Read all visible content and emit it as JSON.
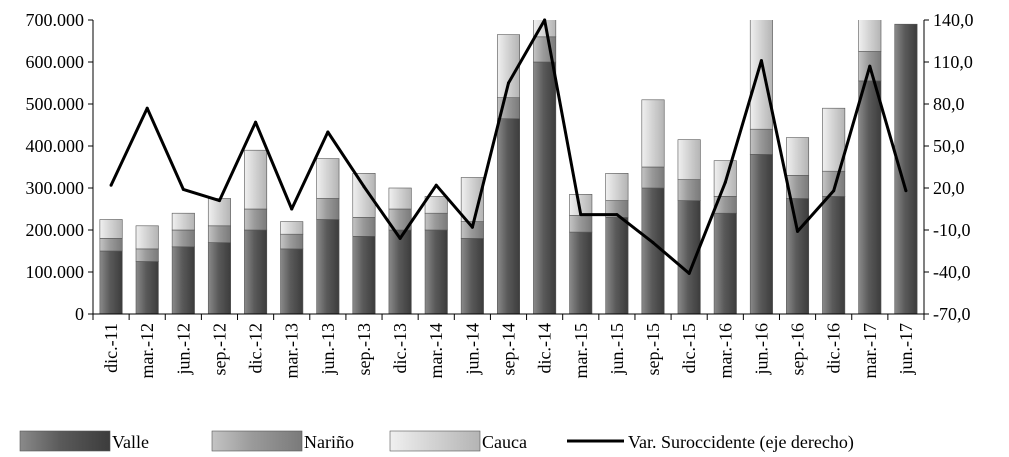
{
  "chart_data": {
    "type": "bar",
    "stacked": true,
    "categories": [
      "dic.-11",
      "mar.-12",
      "jun.-12",
      "sep.-12",
      "dic.-12",
      "mar.-13",
      "jun.-13",
      "sep.-13",
      "dic.-13",
      "mar.-14",
      "jun.-14",
      "sep.-14",
      "dic.-14",
      "mar.-15",
      "jun.-15",
      "sep.-15",
      "dic.-15",
      "mar.-16",
      "jun.-16",
      "sep.-16",
      "dic.-16",
      "mar.-17",
      "jun.-17"
    ],
    "series": [
      {
        "name": "Valle",
        "color": "#6e6e6e",
        "values": [
          150000,
          125000,
          160000,
          170000,
          200000,
          155000,
          225000,
          185000,
          200000,
          200000,
          180000,
          465000,
          600000,
          195000,
          230000,
          300000,
          270000,
          240000,
          380000,
          275000,
          280000,
          555000,
          690000
        ]
      },
      {
        "name": "Nariño",
        "color": "#9a9a9a",
        "values": [
          30000,
          30000,
          40000,
          40000,
          50000,
          35000,
          50000,
          45000,
          50000,
          40000,
          40000,
          50000,
          60000,
          40000,
          40000,
          50000,
          50000,
          40000,
          60000,
          55000,
          60000,
          70000,
          0
        ]
      },
      {
        "name": "Cauca",
        "color": "#cfcfcf",
        "values": [
          45000,
          55000,
          40000,
          65000,
          140000,
          30000,
          95000,
          105000,
          50000,
          40000,
          105000,
          150000,
          50000,
          50000,
          65000,
          160000,
          95000,
          85000,
          270000,
          90000,
          150000,
          85000,
          0
        ]
      }
    ],
    "line_series": {
      "name": "Var. Suroccidente (eje derecho)",
      "axis": "right",
      "color": "#000000",
      "values": [
        22,
        77,
        19,
        11,
        67,
        5,
        60,
        21,
        -16,
        22,
        -8,
        95,
        140,
        1,
        1,
        -19,
        -41,
        24,
        111,
        -11,
        18,
        107,
        18
      ]
    },
    "y_left": {
      "ylim": [
        0,
        700000
      ],
      "ticks": [
        0,
        100000,
        200000,
        300000,
        400000,
        500000,
        600000,
        700000
      ],
      "tick_labels": [
        "0",
        "100.000",
        "200.000",
        "300.000",
        "400.000",
        "500.000",
        "600.000",
        "700.000"
      ]
    },
    "y_right": {
      "ylim": [
        -70,
        140
      ],
      "ticks": [
        -70,
        -40,
        -10,
        20,
        50,
        80,
        110,
        140
      ],
      "tick_labels": [
        "-70,0",
        "-40,0",
        "-10,0",
        "20,0",
        "50,0",
        "80,0",
        "110,0",
        "140,0"
      ]
    },
    "title": "",
    "xlabel": "",
    "ylabel": "",
    "legend": {
      "placement": "bottom",
      "items": [
        "Valle",
        "Nariño",
        "Cauca",
        "Var. Suroccidente (eje derecho)"
      ]
    },
    "grid": false
  }
}
